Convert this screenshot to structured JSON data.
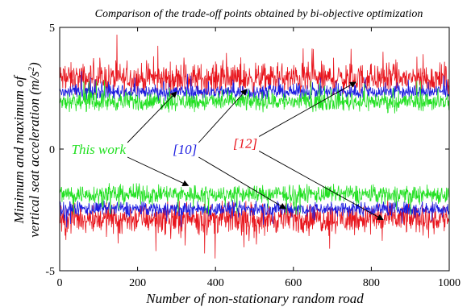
{
  "chart_data": {
    "type": "line",
    "title": "Comparison of the trade-off points obtained by bi-objective optimization",
    "xlabel": "Number of non-stationary random road",
    "ylabel_line1": "Minimum and maximum of",
    "ylabel_line2_prefix": "vertical seat acceleration (m/s",
    "ylabel_exponent": "2",
    "ylabel_line2_suffix": ")",
    "xlim": [
      0,
      1000
    ],
    "ylim": [
      -5,
      5
    ],
    "xticks": [
      0,
      200,
      400,
      600,
      800,
      1000
    ],
    "yticks": [
      -5,
      0,
      5
    ],
    "grid": false,
    "n_points": 1000,
    "series": [
      {
        "name": "[12]",
        "color": "#e8141c",
        "upper_mean": 2.9,
        "upper_noise": 0.45,
        "upper_max": 4.7,
        "lower_mean": -2.85,
        "lower_noise": 0.45,
        "lower_min": -4.5
      },
      {
        "name": "[10]",
        "color": "#1c1ce0",
        "upper_mean": 2.35,
        "upper_noise": 0.22,
        "upper_max": 3.2,
        "lower_mean": -2.45,
        "lower_noise": 0.22,
        "lower_min": -3.3
      },
      {
        "name": "This work",
        "color": "#22e022",
        "upper_mean": 1.95,
        "upper_noise": 0.28,
        "upper_max": 2.8,
        "lower_mean": -1.85,
        "lower_noise": 0.28,
        "lower_min": -2.7
      }
    ],
    "annotations": [
      {
        "series": "This work",
        "text": "This work",
        "text_x": 30,
        "text_y": 0.0,
        "arrow_targets": [
          [
            300,
            2.35
          ],
          [
            330,
            -1.5
          ]
        ]
      },
      {
        "series": "[10]",
        "text": "[10]",
        "text_x": 290,
        "text_y": 0.0,
        "arrow_targets": [
          [
            480,
            2.45
          ],
          [
            580,
            -2.45
          ]
        ]
      },
      {
        "series": "[12]",
        "text": "[12]",
        "text_x": 445,
        "text_y": 0.25,
        "arrow_targets": [
          [
            760,
            2.75
          ],
          [
            830,
            -2.9
          ]
        ]
      }
    ]
  }
}
